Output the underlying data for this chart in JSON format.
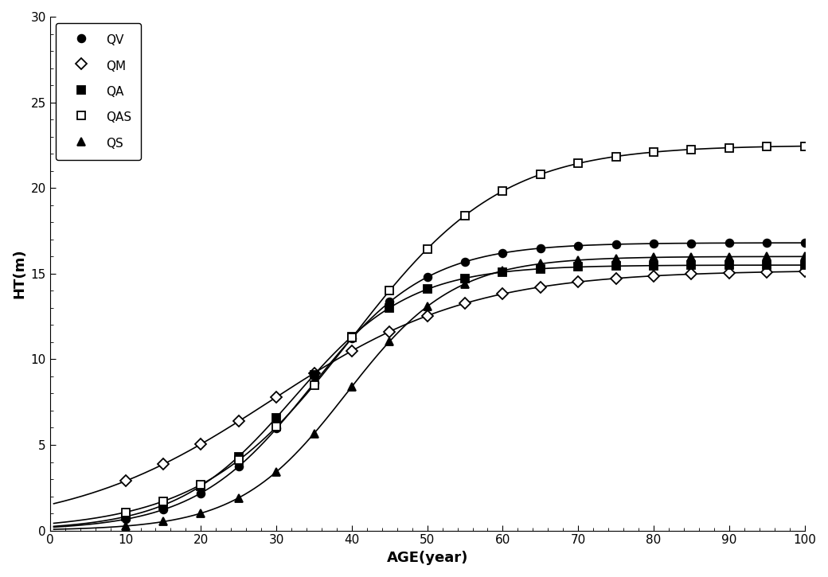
{
  "xlabel": "AGE(year)",
  "ylabel": "HT(m)",
  "xlim": [
    0,
    100
  ],
  "ylim": [
    0,
    30
  ],
  "xticks": [
    0,
    10,
    20,
    30,
    40,
    50,
    60,
    70,
    80,
    90,
    100
  ],
  "yticks": [
    0,
    5,
    10,
    15,
    20,
    25,
    30
  ],
  "series": [
    {
      "label": "QV",
      "marker": "o",
      "fillstyle": "full",
      "color": "#000000",
      "A": 16.8,
      "B": 4.5,
      "C": 0.13
    },
    {
      "label": "QM",
      "marker": "D",
      "fillstyle": "none",
      "color": "#000000",
      "A": 15.2,
      "B": 2.2,
      "C": 0.075
    },
    {
      "label": "QA",
      "marker": "s",
      "fillstyle": "full",
      "color": "#000000",
      "A": 15.5,
      "B": 4.2,
      "C": 0.13
    },
    {
      "label": "QAS",
      "marker": "s",
      "fillstyle": "none",
      "color": "#000000",
      "A": 22.5,
      "B": 4.0,
      "C": 0.1
    },
    {
      "label": "QS",
      "marker": "^",
      "fillstyle": "full",
      "color": "#000000",
      "A": 16.0,
      "B": 5.5,
      "C": 0.14
    }
  ],
  "marker_ages": [
    10,
    15,
    20,
    25,
    30,
    35,
    40,
    45,
    50,
    55,
    60,
    65,
    70,
    75,
    80,
    85,
    90,
    95,
    100
  ],
  "background_color": "#ffffff",
  "legend_fontsize": 11,
  "axis_fontsize": 13,
  "tick_fontsize": 11,
  "figsize": [
    10.4,
    7.25
  ],
  "dpi": 100
}
